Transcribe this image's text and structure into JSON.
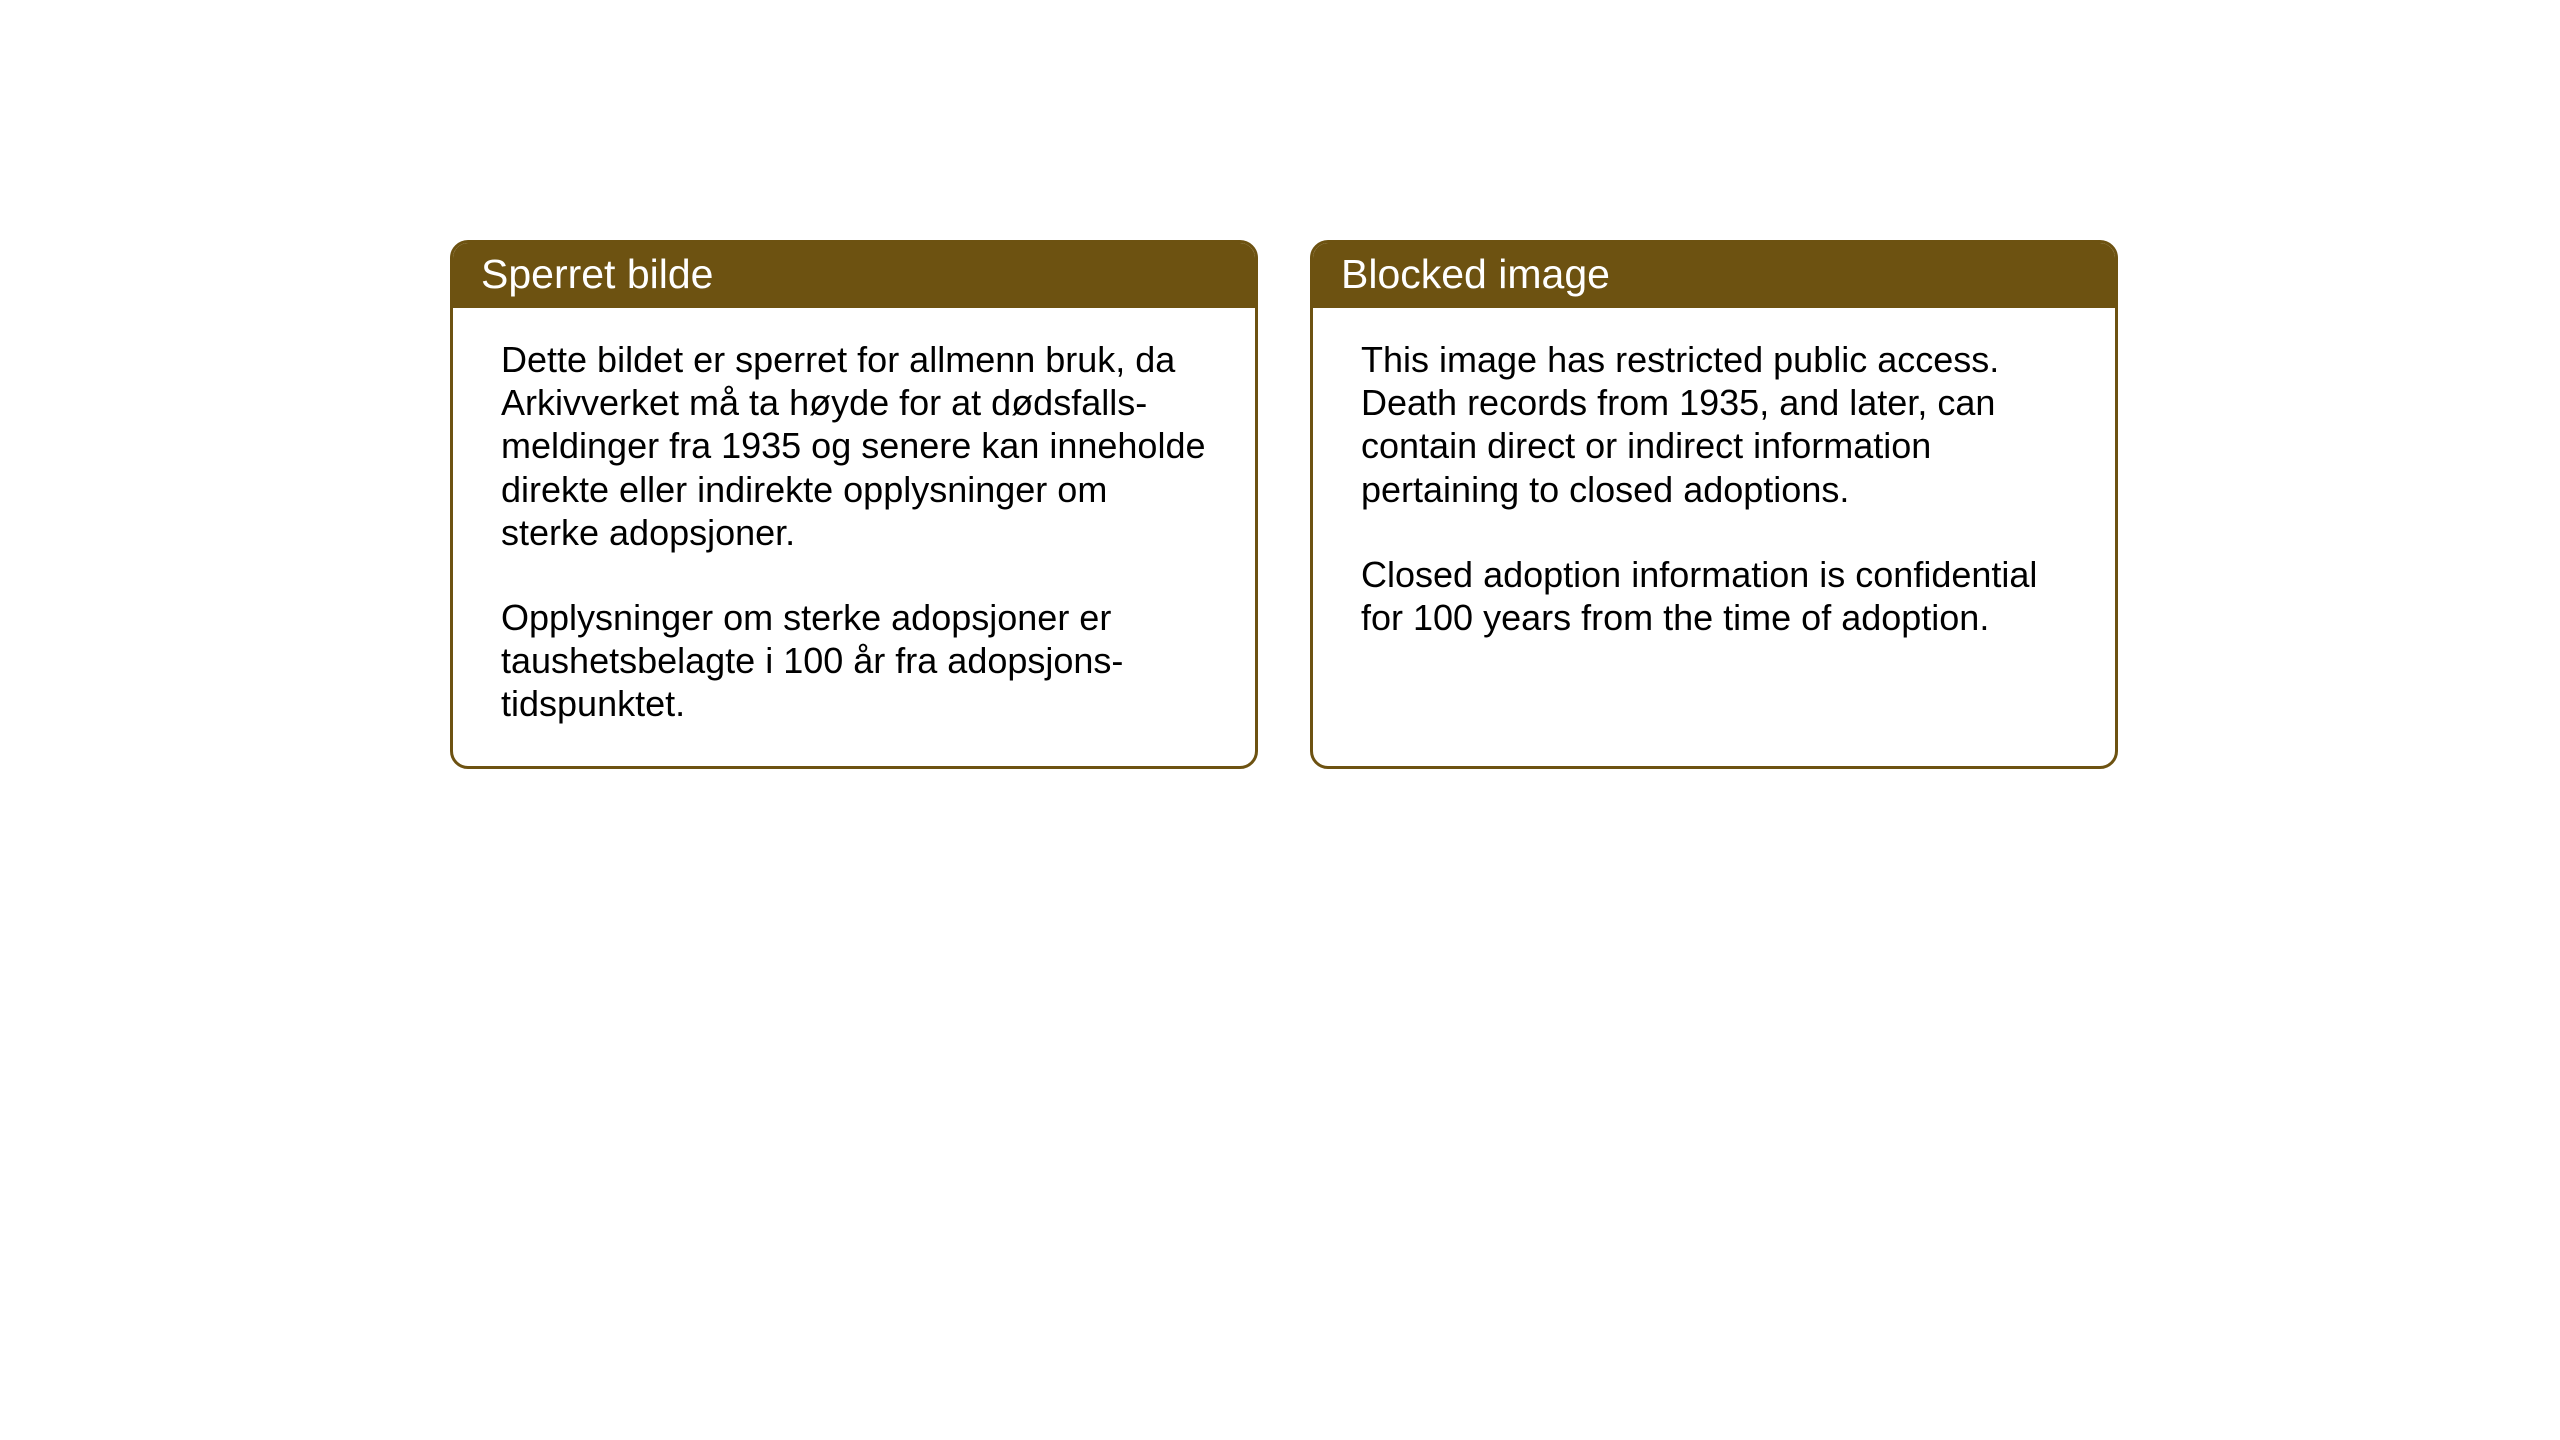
{
  "layout": {
    "background_color": "#ffffff",
    "card_border_color": "#6d5211",
    "card_border_width": 3,
    "card_border_radius": 18,
    "header_bg_color": "#6d5211",
    "header_text_color": "#ffffff",
    "body_text_color": "#000000",
    "header_fontsize": 41,
    "body_fontsize": 36
  },
  "cards": {
    "norwegian": {
      "title": "Sperret bilde",
      "paragraph1": "Dette bildet er sperret for allmenn bruk, da Arkivverket må ta høyde for at dødsfalls-meldinger fra 1935 og senere kan inneholde direkte eller indirekte opplysninger om sterke adopsjoner.",
      "paragraph2": "Opplysninger om sterke adopsjoner er taushetsbelagte i 100 år fra adopsjons-tidspunktet."
    },
    "english": {
      "title": "Blocked image",
      "paragraph1": "This image has restricted public access. Death records from 1935, and later, can contain direct or indirect information pertaining to closed adoptions.",
      "paragraph2": "Closed adoption information is confidential for 100 years from the time of adoption."
    }
  }
}
